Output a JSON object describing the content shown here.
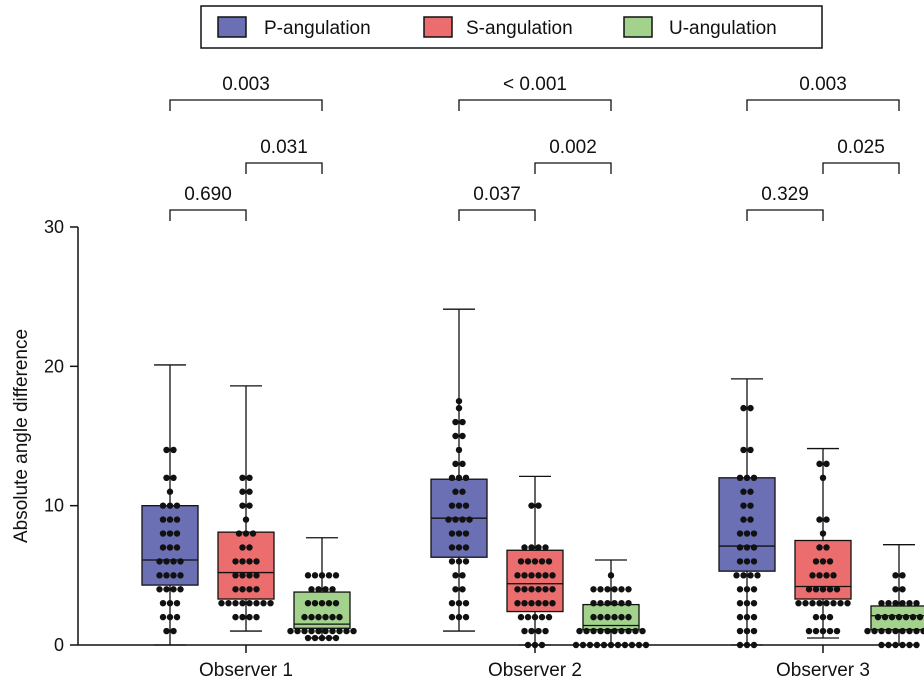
{
  "chart_data": {
    "type": "box",
    "ylabel": "Absolute angle difference",
    "ylim": [
      0,
      30
    ],
    "yticks": [
      0,
      10,
      20,
      30
    ],
    "categories": [
      "Observer 1",
      "Observer 2",
      "Observer 3"
    ],
    "legend": {
      "placement": "top-center"
    },
    "series": [
      {
        "name": "P-angulation",
        "color": "#6B6FB3",
        "boxes": [
          {
            "min": 0,
            "q1": 4.3,
            "median": 6.1,
            "q3": 10.0,
            "max": 20.1,
            "points": [
              14,
              14,
              12,
              12,
              11,
              10,
              10,
              10,
              9,
              9,
              9,
              8,
              8,
              8,
              7,
              7,
              7,
              6,
              6,
              6,
              6,
              5,
              5,
              5,
              5,
              4,
              4,
              4,
              4,
              3,
              3,
              3,
              2,
              2,
              2,
              1,
              1
            ]
          },
          {
            "min": 1,
            "q1": 6.3,
            "median": 9.1,
            "q3": 11.9,
            "max": 24.1,
            "points": [
              17.5,
              17,
              16,
              16,
              15,
              15,
              14,
              13,
              13,
              12,
              12,
              12,
              11,
              11,
              10,
              10,
              10,
              9,
              9,
              9,
              9,
              8,
              8,
              8,
              7,
              7,
              7,
              6,
              6,
              6,
              5,
              5,
              4,
              4,
              3,
              3,
              3,
              2,
              2,
              2
            ]
          },
          {
            "min": 0,
            "q1": 5.3,
            "median": 7.1,
            "q3": 12.0,
            "max": 19.1,
            "points": [
              17,
              17,
              14,
              14,
              12,
              12,
              12,
              11,
              11,
              10,
              10,
              9,
              9,
              8,
              8,
              8,
              7,
              7,
              7,
              6,
              6,
              6,
              5,
              5,
              5,
              5,
              4,
              4,
              4,
              3,
              3,
              3,
              2,
              2,
              2,
              1,
              1,
              1,
              0,
              0,
              0
            ]
          }
        ]
      },
      {
        "name": "S-angulation",
        "color": "#EB6D6D",
        "boxes": [
          {
            "min": 1,
            "q1": 3.3,
            "median": 5.2,
            "q3": 8.1,
            "max": 18.6,
            "points": [
              12,
              12,
              11,
              11,
              10,
              10,
              9,
              8,
              8,
              8,
              7,
              7,
              6,
              6,
              6,
              6,
              5,
              5,
              5,
              5,
              4,
              4,
              4,
              4,
              3,
              3,
              3,
              3,
              3,
              3,
              3,
              3,
              2,
              2,
              2,
              2
            ]
          },
          {
            "min": 0,
            "q1": 2.4,
            "median": 4.4,
            "q3": 6.8,
            "max": 12.1,
            "points": [
              10,
              10,
              7,
              7,
              7,
              7,
              6,
              6,
              6,
              6,
              6,
              5,
              5,
              5,
              5,
              5,
              5,
              4,
              4,
              4,
              4,
              4,
              4,
              3,
              3,
              3,
              3,
              3,
              3,
              2,
              2,
              2,
              2,
              2,
              1,
              1,
              1,
              1,
              0,
              0,
              0
            ]
          },
          {
            "min": 0.5,
            "q1": 3.3,
            "median": 4.2,
            "q3": 7.5,
            "max": 14.1,
            "points": [
              13,
              13,
              12,
              9,
              9,
              8,
              7,
              7,
              6,
              6,
              6,
              5,
              5,
              5,
              5,
              4,
              4,
              4,
              4,
              4,
              3,
              3,
              3,
              3,
              3,
              3,
              3,
              3,
              2,
              2,
              2,
              1,
              1,
              1,
              1,
              1
            ]
          }
        ]
      },
      {
        "name": "U-angulation",
        "color": "#A3D28C",
        "boxes": [
          {
            "min": 0.5,
            "q1": 1.2,
            "median": 1.5,
            "q3": 3.8,
            "max": 7.7,
            "points": [
              5,
              5,
              5,
              5,
              5,
              4,
              4,
              4,
              4,
              3,
              3,
              3,
              3,
              3,
              2,
              2,
              2,
              2,
              2,
              2,
              1,
              1,
              1,
              1,
              1,
              1,
              1,
              1,
              1,
              1,
              0.5,
              0.5,
              0.5,
              0.5,
              0.5
            ]
          },
          {
            "min": 0,
            "q1": 1.1,
            "median": 1.4,
            "q3": 2.9,
            "max": 6.1,
            "points": [
              5,
              4,
              4,
              4,
              4,
              4,
              4,
              3,
              3,
              3,
              3,
              3,
              3,
              2,
              2,
              2,
              2,
              2,
              2,
              1,
              1,
              1,
              1,
              1,
              1,
              1,
              1,
              1,
              1,
              0,
              0,
              0,
              0,
              0,
              0,
              0,
              0,
              0,
              0,
              0
            ]
          },
          {
            "min": 0,
            "q1": 1.1,
            "median": 2.1,
            "q3": 2.8,
            "max": 7.2,
            "points": [
              5,
              5,
              4,
              4,
              3,
              3,
              3,
              3,
              3,
              3,
              2,
              2,
              2,
              2,
              2,
              2,
              2,
              1,
              1,
              1,
              1,
              1,
              1,
              1,
              1,
              1,
              1,
              0,
              0,
              0,
              0,
              0,
              0
            ]
          }
        ]
      }
    ],
    "comparisons": [
      {
        "group": 0,
        "from": 0,
        "to": 2,
        "label": "0.003"
      },
      {
        "group": 0,
        "from": 1,
        "to": 2,
        "label": "0.031"
      },
      {
        "group": 0,
        "from": 0,
        "to": 1,
        "label": "0.690"
      },
      {
        "group": 1,
        "from": 0,
        "to": 2,
        "label": "< 0.001"
      },
      {
        "group": 1,
        "from": 1,
        "to": 2,
        "label": "0.002"
      },
      {
        "group": 1,
        "from": 0,
        "to": 1,
        "label": "0.037"
      },
      {
        "group": 2,
        "from": 0,
        "to": 2,
        "label": "0.003"
      },
      {
        "group": 2,
        "from": 1,
        "to": 2,
        "label": "0.025"
      },
      {
        "group": 2,
        "from": 0,
        "to": 1,
        "label": "0.329"
      }
    ]
  }
}
